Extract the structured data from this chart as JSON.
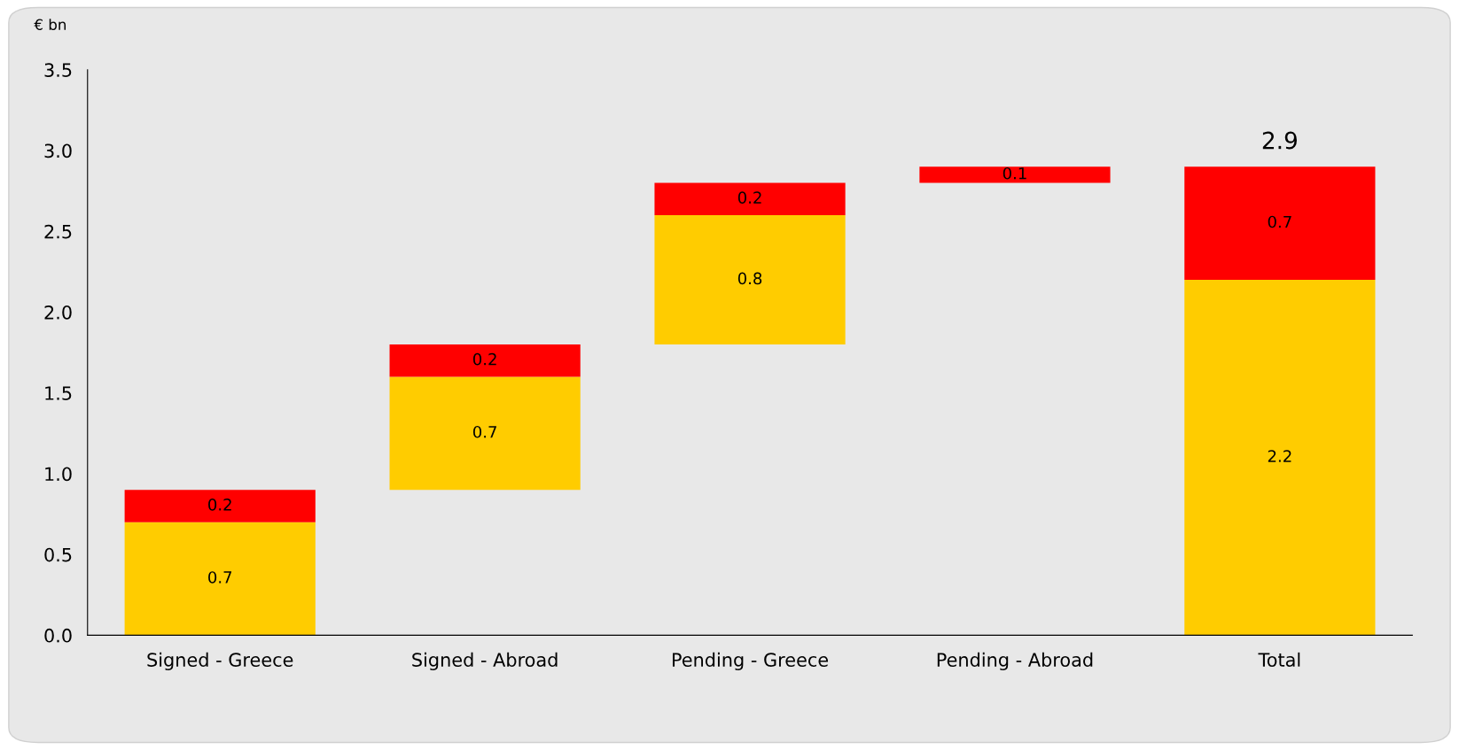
{
  "chart_data": {
    "type": "bar",
    "ylabel": "€ bn",
    "categories": [
      "Signed - Greece",
      "Signed - Abroad",
      "Pending - Greece",
      "Pending - Abroad",
      "Total"
    ],
    "series": [
      {
        "color": "#ffcc00",
        "base": [
          0,
          0.9,
          1.8,
          null,
          0
        ],
        "values": [
          0.7,
          0.7,
          0.8,
          null,
          2.2
        ]
      },
      {
        "color": "#ff0000",
        "base": [
          0.7,
          1.6,
          2.6,
          2.8,
          2.2
        ],
        "values": [
          0.2,
          0.2,
          0.2,
          0.1,
          0.7
        ]
      }
    ],
    "data_labels": true,
    "totals": [
      null,
      null,
      null,
      null,
      "2.9"
    ],
    "ylim": [
      0,
      3.5
    ],
    "yticks": [
      {
        "value": 0,
        "label": "0.0"
      },
      {
        "value": 0.5,
        "label": "0.5"
      },
      {
        "value": 1,
        "label": "1.0"
      },
      {
        "value": 1.5,
        "label": "1.5"
      },
      {
        "value": 2,
        "label": "2.0"
      },
      {
        "value": 2.5,
        "label": "2.5"
      },
      {
        "value": 3,
        "label": "3.0"
      },
      {
        "value": 3.5,
        "label": "3.5"
      }
    ],
    "grid": false,
    "legend": false
  }
}
